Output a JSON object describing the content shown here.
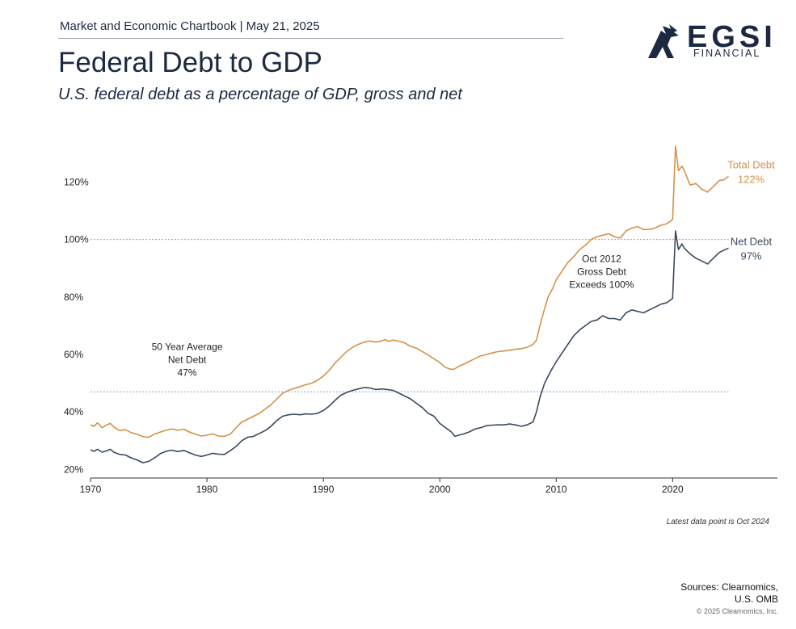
{
  "header": {
    "publication": "Market and Economic Chartbook | May 21, 2025",
    "title": "Federal Debt to GDP",
    "subtitle": "U.S. federal debt as a percentage of GDP, gross and net"
  },
  "logo": {
    "word": "EGSI",
    "sub": "FINANCIAL"
  },
  "chart_data": {
    "type": "line",
    "xlim": [
      1970,
      2029
    ],
    "ylim": [
      17,
      137
    ],
    "x_ticks": [
      1970,
      1980,
      1990,
      2000,
      2010,
      2020
    ],
    "y_ticks": [
      20,
      40,
      60,
      80,
      100,
      120
    ],
    "y_tick_labels": [
      "20%",
      "40%",
      "60%",
      "80%",
      "100%",
      "120%"
    ],
    "colors": {
      "total": "#d4924a",
      "net": "#3b4a5e",
      "ref100": "#e08a8a",
      "avg": "#7da7d9"
    },
    "series": [
      {
        "name": "Total Debt",
        "label_line1": "Total Debt",
        "label_line2": "122%",
        "points": [
          [
            1970.0,
            35.5
          ],
          [
            1970.3,
            35.0
          ],
          [
            1970.6,
            36.2
          ],
          [
            1971.0,
            34.5
          ],
          [
            1971.4,
            35.5
          ],
          [
            1971.7,
            36.0
          ],
          [
            1972.0,
            34.8
          ],
          [
            1972.5,
            33.5
          ],
          [
            1973.0,
            33.8
          ],
          [
            1973.5,
            32.8
          ],
          [
            1974.0,
            32.2
          ],
          [
            1974.5,
            31.4
          ],
          [
            1975.0,
            31.2
          ],
          [
            1975.5,
            32.3
          ],
          [
            1976.0,
            33.0
          ],
          [
            1976.5,
            33.6
          ],
          [
            1977.0,
            34.1
          ],
          [
            1977.5,
            33.6
          ],
          [
            1978.0,
            34.0
          ],
          [
            1978.5,
            33.0
          ],
          [
            1979.0,
            32.3
          ],
          [
            1979.5,
            31.6
          ],
          [
            1980.0,
            31.9
          ],
          [
            1980.5,
            32.4
          ],
          [
            1981.0,
            31.6
          ],
          [
            1981.5,
            31.5
          ],
          [
            1982.0,
            32.2
          ],
          [
            1982.5,
            34.5
          ],
          [
            1983.0,
            36.5
          ],
          [
            1983.5,
            37.5
          ],
          [
            1984.0,
            38.5
          ],
          [
            1984.5,
            39.5
          ],
          [
            1985.0,
            41.0
          ],
          [
            1985.5,
            42.5
          ],
          [
            1986.0,
            44.5
          ],
          [
            1986.5,
            46.5
          ],
          [
            1987.0,
            47.5
          ],
          [
            1987.5,
            48.2
          ],
          [
            1988.0,
            48.8
          ],
          [
            1988.5,
            49.5
          ],
          [
            1989.0,
            50.0
          ],
          [
            1989.5,
            51.0
          ],
          [
            1990.0,
            52.5
          ],
          [
            1990.5,
            54.5
          ],
          [
            1991.0,
            57.0
          ],
          [
            1991.5,
            59.0
          ],
          [
            1992.0,
            61.0
          ],
          [
            1992.5,
            62.5
          ],
          [
            1993.0,
            63.5
          ],
          [
            1993.5,
            64.3
          ],
          [
            1994.0,
            64.7
          ],
          [
            1994.5,
            64.3
          ],
          [
            1995.0,
            64.7
          ],
          [
            1995.3,
            65.2
          ],
          [
            1995.6,
            64.6
          ],
          [
            1996.0,
            65.0
          ],
          [
            1996.5,
            64.6
          ],
          [
            1997.0,
            64.0
          ],
          [
            1997.5,
            62.8
          ],
          [
            1998.0,
            62.2
          ],
          [
            1998.5,
            61.0
          ],
          [
            1999.0,
            59.8
          ],
          [
            1999.5,
            58.5
          ],
          [
            2000.0,
            57.2
          ],
          [
            2000.4,
            55.7
          ],
          [
            2000.8,
            55.0
          ],
          [
            2001.2,
            54.8
          ],
          [
            2001.6,
            55.8
          ],
          [
            2002.0,
            56.5
          ],
          [
            2002.5,
            57.5
          ],
          [
            2003.0,
            58.5
          ],
          [
            2003.5,
            59.5
          ],
          [
            2004.0,
            60.0
          ],
          [
            2004.5,
            60.5
          ],
          [
            2005.0,
            61.0
          ],
          [
            2005.5,
            61.2
          ],
          [
            2006.0,
            61.5
          ],
          [
            2006.5,
            61.8
          ],
          [
            2007.0,
            62.0
          ],
          [
            2007.5,
            62.5
          ],
          [
            2008.0,
            63.5
          ],
          [
            2008.3,
            65.0
          ],
          [
            2008.6,
            70.0
          ],
          [
            2009.0,
            76.0
          ],
          [
            2009.3,
            80.0
          ],
          [
            2009.7,
            83.0
          ],
          [
            2010.0,
            86.0
          ],
          [
            2010.5,
            89.0
          ],
          [
            2011.0,
            92.0
          ],
          [
            2011.5,
            94.0
          ],
          [
            2012.0,
            96.5
          ],
          [
            2012.5,
            98.0
          ],
          [
            2013.0,
            100.0
          ],
          [
            2013.5,
            101.0
          ],
          [
            2014.0,
            101.5
          ],
          [
            2014.5,
            102.0
          ],
          [
            2015.0,
            101.0
          ],
          [
            2015.5,
            100.5
          ],
          [
            2016.0,
            103.0
          ],
          [
            2016.5,
            104.0
          ],
          [
            2017.0,
            104.5
          ],
          [
            2017.5,
            103.5
          ],
          [
            2018.0,
            103.5
          ],
          [
            2018.5,
            104.0
          ],
          [
            2019.0,
            105.0
          ],
          [
            2019.5,
            105.5
          ],
          [
            2020.0,
            107.0
          ],
          [
            2020.25,
            132.5
          ],
          [
            2020.5,
            124.0
          ],
          [
            2020.8,
            125.5
          ],
          [
            2021.0,
            124.0
          ],
          [
            2021.5,
            119.0
          ],
          [
            2022.0,
            119.5
          ],
          [
            2022.5,
            117.5
          ],
          [
            2023.0,
            116.5
          ],
          [
            2023.5,
            118.5
          ],
          [
            2024.0,
            120.5
          ],
          [
            2024.4,
            120.8
          ],
          [
            2024.8,
            122.0
          ]
        ]
      },
      {
        "name": "Net Debt",
        "label_line1": "Net Debt",
        "label_line2": "97%",
        "points": [
          [
            1970.0,
            26.8
          ],
          [
            1970.3,
            26.3
          ],
          [
            1970.6,
            27.0
          ],
          [
            1971.0,
            26.0
          ],
          [
            1971.4,
            26.5
          ],
          [
            1971.7,
            27.0
          ],
          [
            1972.0,
            26.0
          ],
          [
            1972.5,
            25.2
          ],
          [
            1973.0,
            25.0
          ],
          [
            1973.5,
            24.0
          ],
          [
            1974.0,
            23.3
          ],
          [
            1974.5,
            22.3
          ],
          [
            1975.0,
            22.8
          ],
          [
            1975.5,
            24.0
          ],
          [
            1976.0,
            25.5
          ],
          [
            1976.5,
            26.3
          ],
          [
            1977.0,
            26.7
          ],
          [
            1977.5,
            26.2
          ],
          [
            1978.0,
            26.6
          ],
          [
            1978.5,
            25.8
          ],
          [
            1979.0,
            25.0
          ],
          [
            1979.5,
            24.5
          ],
          [
            1980.0,
            25.0
          ],
          [
            1980.5,
            25.6
          ],
          [
            1981.0,
            25.3
          ],
          [
            1981.5,
            25.2
          ],
          [
            1982.0,
            26.5
          ],
          [
            1982.5,
            28.0
          ],
          [
            1983.0,
            30.0
          ],
          [
            1983.5,
            31.2
          ],
          [
            1984.0,
            31.5
          ],
          [
            1984.5,
            32.5
          ],
          [
            1985.0,
            33.5
          ],
          [
            1985.5,
            35.0
          ],
          [
            1986.0,
            37.0
          ],
          [
            1986.5,
            38.5
          ],
          [
            1987.0,
            39.0
          ],
          [
            1987.5,
            39.2
          ],
          [
            1988.0,
            39.0
          ],
          [
            1988.5,
            39.3
          ],
          [
            1989.0,
            39.2
          ],
          [
            1989.5,
            39.5
          ],
          [
            1990.0,
            40.5
          ],
          [
            1990.5,
            42.0
          ],
          [
            1991.0,
            44.0
          ],
          [
            1991.5,
            45.8
          ],
          [
            1992.0,
            46.8
          ],
          [
            1992.5,
            47.5
          ],
          [
            1993.0,
            48.0
          ],
          [
            1993.5,
            48.5
          ],
          [
            1994.0,
            48.3
          ],
          [
            1994.5,
            47.8
          ],
          [
            1995.0,
            48.0
          ],
          [
            1995.5,
            47.8
          ],
          [
            1996.0,
            47.5
          ],
          [
            1996.5,
            46.5
          ],
          [
            1997.0,
            45.5
          ],
          [
            1997.5,
            44.5
          ],
          [
            1998.0,
            43.0
          ],
          [
            1998.5,
            41.5
          ],
          [
            1999.0,
            39.5
          ],
          [
            1999.5,
            38.5
          ],
          [
            2000.0,
            36.0
          ],
          [
            2000.5,
            34.5
          ],
          [
            2001.0,
            33.0
          ],
          [
            2001.3,
            31.5
          ],
          [
            2001.7,
            32.0
          ],
          [
            2002.0,
            32.3
          ],
          [
            2002.5,
            33.0
          ],
          [
            2003.0,
            34.0
          ],
          [
            2003.5,
            34.5
          ],
          [
            2004.0,
            35.2
          ],
          [
            2004.5,
            35.4
          ],
          [
            2005.0,
            35.5
          ],
          [
            2005.5,
            35.5
          ],
          [
            2006.0,
            35.8
          ],
          [
            2006.5,
            35.5
          ],
          [
            2007.0,
            35.0
          ],
          [
            2007.5,
            35.5
          ],
          [
            2008.0,
            36.5
          ],
          [
            2008.3,
            40.0
          ],
          [
            2008.6,
            45.0
          ],
          [
            2009.0,
            50.0
          ],
          [
            2009.5,
            54.0
          ],
          [
            2010.0,
            57.5
          ],
          [
            2010.5,
            60.5
          ],
          [
            2011.0,
            63.5
          ],
          [
            2011.5,
            66.5
          ],
          [
            2012.0,
            68.5
          ],
          [
            2012.5,
            70.0
          ],
          [
            2013.0,
            71.5
          ],
          [
            2013.5,
            72.0
          ],
          [
            2014.0,
            73.5
          ],
          [
            2014.5,
            72.5
          ],
          [
            2015.0,
            72.5
          ],
          [
            2015.5,
            72.0
          ],
          [
            2016.0,
            74.5
          ],
          [
            2016.5,
            75.5
          ],
          [
            2017.0,
            75.0
          ],
          [
            2017.5,
            74.5
          ],
          [
            2018.0,
            75.5
          ],
          [
            2018.5,
            76.5
          ],
          [
            2019.0,
            77.5
          ],
          [
            2019.5,
            78.0
          ],
          [
            2020.0,
            79.5
          ],
          [
            2020.25,
            103.0
          ],
          [
            2020.5,
            96.5
          ],
          [
            2020.8,
            98.5
          ],
          [
            2021.0,
            97.0
          ],
          [
            2021.5,
            95.0
          ],
          [
            2022.0,
            93.5
          ],
          [
            2022.5,
            92.5
          ],
          [
            2023.0,
            91.5
          ],
          [
            2023.5,
            93.5
          ],
          [
            2024.0,
            95.5
          ],
          [
            2024.4,
            96.3
          ],
          [
            2024.8,
            97.0
          ]
        ]
      }
    ],
    "ref_line_100": {
      "value": 100
    },
    "avg_line": {
      "value": 47
    },
    "annotations": [
      {
        "id": "avg",
        "lines": [
          "50 Year Average",
          "Net Debt",
          "47%"
        ]
      },
      {
        "id": "oct2012",
        "lines": [
          "Oct 2012",
          "Gross Debt",
          "Exceeds 100%"
        ]
      }
    ]
  },
  "footer": {
    "note": "Latest data point is Oct 2024",
    "sources_line1": "Sources: Clearnomics,",
    "sources_line2": "U.S. OMB",
    "copyright": "© 2025 Clearnomics, Inc."
  }
}
